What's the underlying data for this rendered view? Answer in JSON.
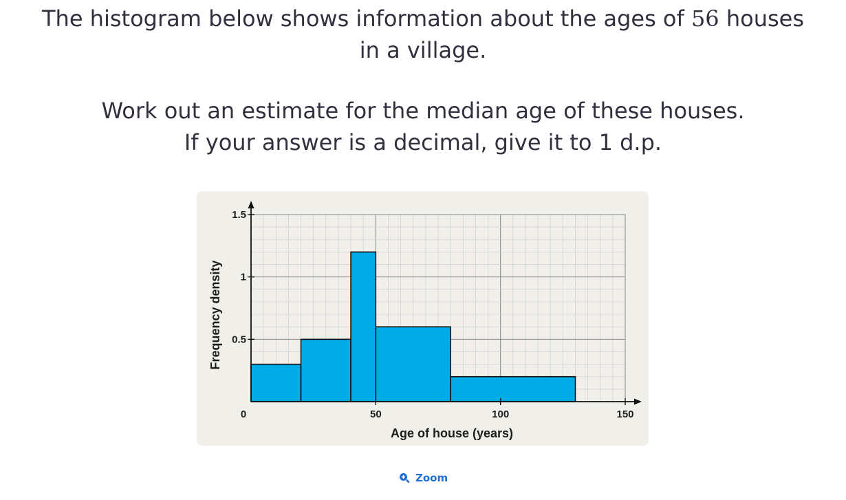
{
  "question": {
    "line1_pre": "The histogram below shows information about the ages of",
    "line1_num": "56",
    "line1_post": "houses",
    "line2": "in a village.",
    "line3": "Work out an estimate for the median age of these houses.",
    "line4": "If your answer is a decimal, give it to 1 d.p."
  },
  "zoom": {
    "label": "Zoom",
    "icon": "zoom-in-icon"
  },
  "colors": {
    "bar": "#00abe9",
    "bar_stroke": "#111111",
    "card": "#f1efe9",
    "accent": "#1f6fd6"
  },
  "chart_data": {
    "type": "bar",
    "subtype": "histogram",
    "xlabel": "Age of house (years)",
    "ylabel": "Frequency density",
    "xlim": [
      0,
      150
    ],
    "ylim": [
      0,
      1.5
    ],
    "x_ticks": [
      0,
      50,
      100,
      150
    ],
    "x_tick_labels": [
      "0",
      "50",
      "100",
      "150"
    ],
    "y_ticks": [
      0,
      0.5,
      1,
      1.5
    ],
    "y_tick_labels": [
      "0",
      "0.5",
      "1",
      "1.5"
    ],
    "grid": true,
    "bins": [
      {
        "x0": 0,
        "x1": 20,
        "density": 0.3
      },
      {
        "x0": 20,
        "x1": 40,
        "density": 0.5
      },
      {
        "x0": 40,
        "x1": 50,
        "density": 1.2
      },
      {
        "x0": 50,
        "x1": 80,
        "density": 0.6
      },
      {
        "x0": 80,
        "x1": 130,
        "density": 0.2
      }
    ]
  }
}
